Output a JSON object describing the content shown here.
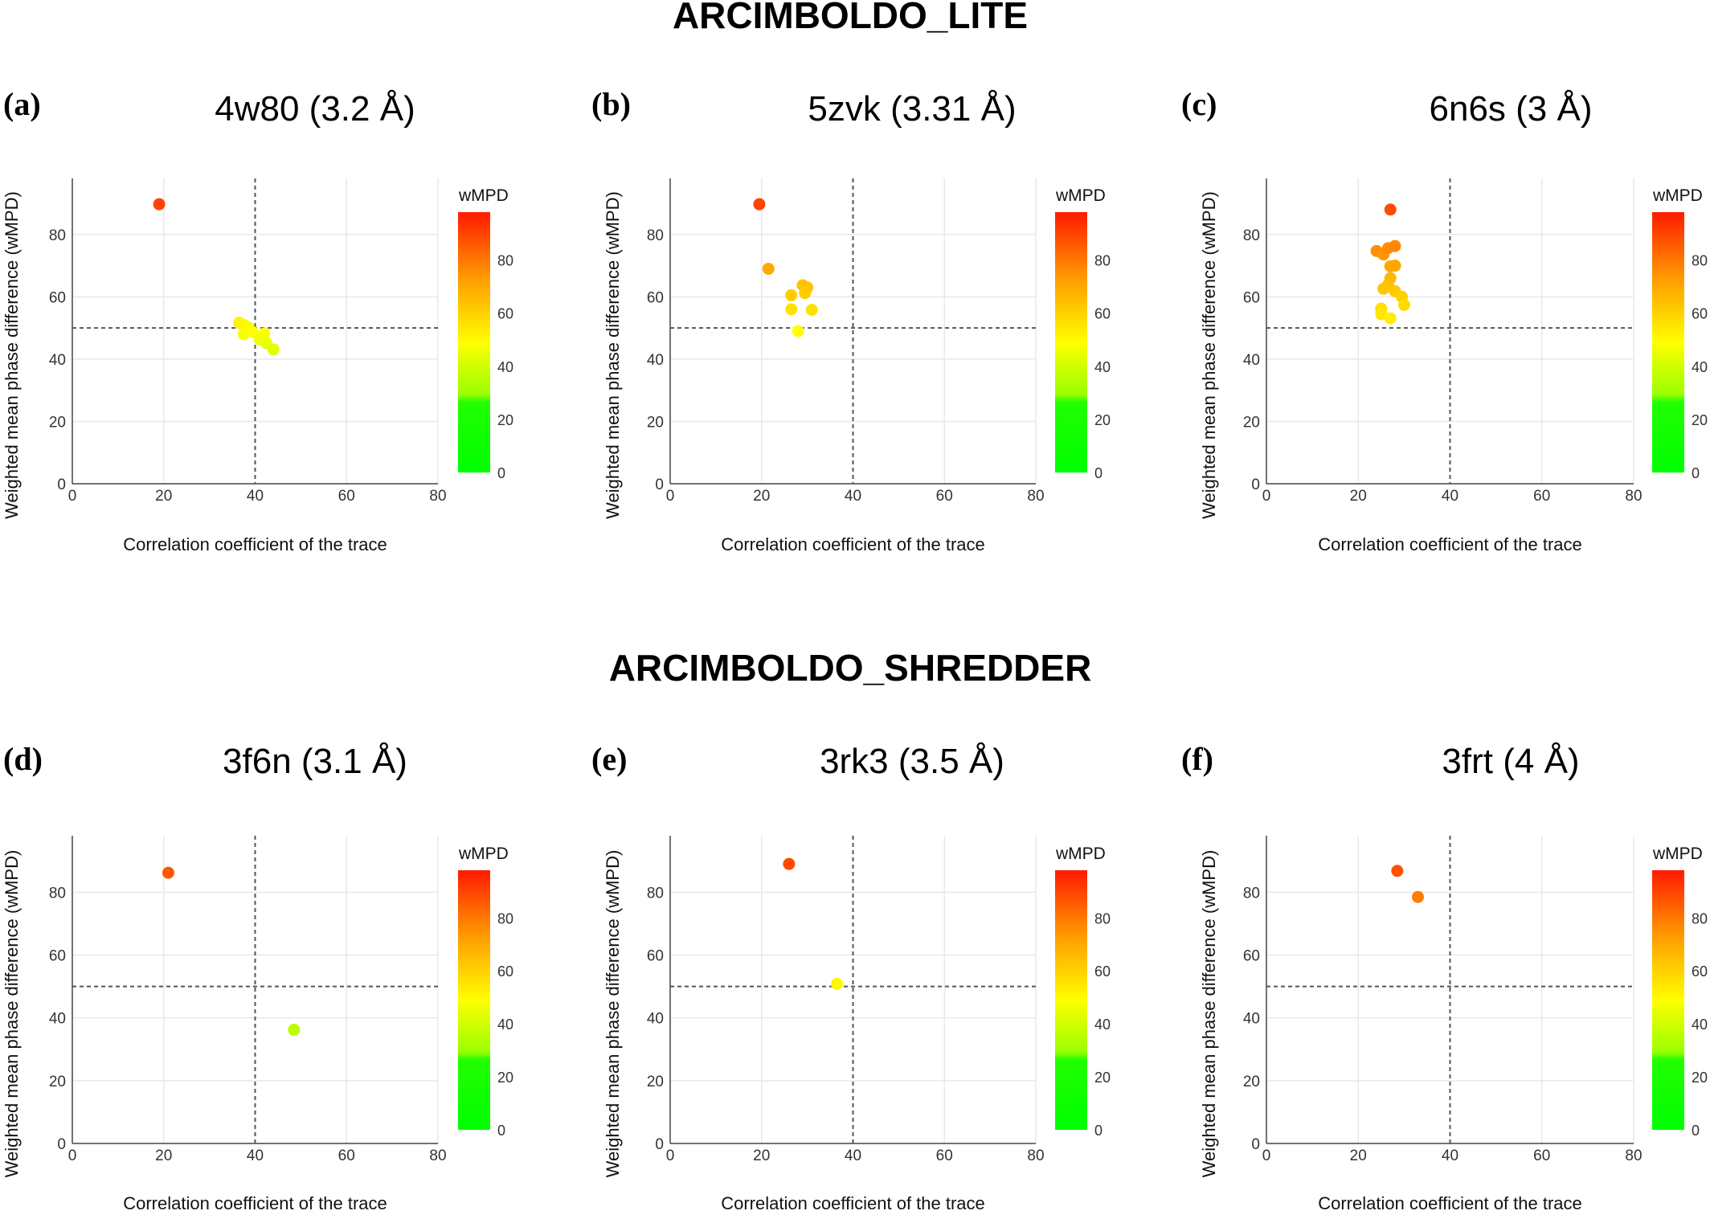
{
  "section_titles": [
    "ARCIMBOLDO_LITE",
    "ARCIMBOLDO_SHREDDER"
  ],
  "colorbar": {
    "title": "wMPD",
    "min": 0,
    "max": 98,
    "ticks": [
      0,
      20,
      40,
      60,
      80
    ]
  },
  "chart_data": [
    {
      "type": "scatter",
      "panel_letter": "(a)",
      "title": "4w80 (3.2 Å)",
      "xlabel": "Correlation coefficient of the trace",
      "ylabel": "Weighted mean phase difference (wMPD)",
      "xlim": [
        0,
        80
      ],
      "ylim": [
        0,
        98
      ],
      "xticks": [
        0,
        20,
        40,
        60,
        80
      ],
      "yticks": [
        0,
        20,
        40,
        60,
        80
      ],
      "reference_lines": {
        "x": 40,
        "y": 50
      },
      "grid": true,
      "points": [
        {
          "x": 19.0,
          "y": 89.7
        },
        {
          "x": 36.5,
          "y": 51.7
        },
        {
          "x": 37.5,
          "y": 51.0
        },
        {
          "x": 38.5,
          "y": 50.2
        },
        {
          "x": 37.5,
          "y": 48.0
        },
        {
          "x": 39.5,
          "y": 48.6
        },
        {
          "x": 42.0,
          "y": 48.2
        },
        {
          "x": 41.0,
          "y": 46.3
        },
        {
          "x": 42.5,
          "y": 45.1
        },
        {
          "x": 44.0,
          "y": 43.1
        }
      ]
    },
    {
      "type": "scatter",
      "panel_letter": "(b)",
      "title": "5zvk (3.31 Å)",
      "xlabel": "Correlation coefficient of the trace",
      "ylabel": "Weighted mean phase difference (wMPD)",
      "xlim": [
        0,
        80
      ],
      "ylim": [
        0,
        98
      ],
      "xticks": [
        0,
        20,
        40,
        60,
        80
      ],
      "yticks": [
        0,
        20,
        40,
        60,
        80
      ],
      "reference_lines": {
        "x": 40,
        "y": 50
      },
      "grid": true,
      "points": [
        {
          "x": 19.5,
          "y": 89.7
        },
        {
          "x": 21.5,
          "y": 69.0
        },
        {
          "x": 26.5,
          "y": 60.5
        },
        {
          "x": 29.0,
          "y": 63.7
        },
        {
          "x": 30.0,
          "y": 63.0
        },
        {
          "x": 29.5,
          "y": 61.2
        },
        {
          "x": 26.5,
          "y": 56.0
        },
        {
          "x": 31.0,
          "y": 55.8
        },
        {
          "x": 28.0,
          "y": 49.0
        }
      ]
    },
    {
      "type": "scatter",
      "panel_letter": "(c)",
      "title": "6n6s (3 Å)",
      "xlabel": "Correlation coefficient of the trace",
      "ylabel": "Weighted mean phase difference (wMPD)",
      "xlim": [
        0,
        80
      ],
      "ylim": [
        0,
        98
      ],
      "xticks": [
        0,
        20,
        40,
        60,
        80
      ],
      "yticks": [
        0,
        20,
        40,
        60,
        80
      ],
      "reference_lines": {
        "x": 40,
        "y": 50
      },
      "grid": true,
      "points": [
        {
          "x": 27.0,
          "y": 88.0
        },
        {
          "x": 24.0,
          "y": 74.7
        },
        {
          "x": 25.5,
          "y": 73.6
        },
        {
          "x": 26.5,
          "y": 75.6
        },
        {
          "x": 28.0,
          "y": 76.3
        },
        {
          "x": 27.0,
          "y": 69.8
        },
        {
          "x": 28.0,
          "y": 70.0
        },
        {
          "x": 27.0,
          "y": 66.0
        },
        {
          "x": 26.5,
          "y": 63.8
        },
        {
          "x": 25.5,
          "y": 62.6
        },
        {
          "x": 28.0,
          "y": 61.8
        },
        {
          "x": 29.5,
          "y": 60.0
        },
        {
          "x": 30.0,
          "y": 57.4
        },
        {
          "x": 25.0,
          "y": 56.2
        },
        {
          "x": 25.0,
          "y": 54.4
        },
        {
          "x": 27.0,
          "y": 53.1
        }
      ]
    },
    {
      "type": "scatter",
      "panel_letter": "(d)",
      "title": "3f6n (3.1 Å)",
      "xlabel": "Correlation coefficient of the trace",
      "ylabel": "Weighted mean phase difference (wMPD)",
      "xlim": [
        0,
        80
      ],
      "ylim": [
        0,
        98
      ],
      "xticks": [
        0,
        20,
        40,
        60,
        80
      ],
      "yticks": [
        0,
        20,
        40,
        60,
        80
      ],
      "reference_lines": {
        "x": 40,
        "y": 50
      },
      "grid": true,
      "points": [
        {
          "x": 21.0,
          "y": 86.2
        },
        {
          "x": 48.5,
          "y": 36.2
        }
      ]
    },
    {
      "type": "scatter",
      "panel_letter": "(e)",
      "title": "3rk3 (3.5 Å)",
      "xlabel": "Correlation coefficient of the trace",
      "ylabel": "Weighted mean phase difference (wMPD)",
      "xlim": [
        0,
        80
      ],
      "ylim": [
        0,
        98
      ],
      "xticks": [
        0,
        20,
        40,
        60,
        80
      ],
      "yticks": [
        0,
        20,
        40,
        60,
        80
      ],
      "reference_lines": {
        "x": 40,
        "y": 50
      },
      "grid": true,
      "points": [
        {
          "x": 26.0,
          "y": 89.0
        },
        {
          "x": 36.5,
          "y": 50.8
        }
      ]
    },
    {
      "type": "scatter",
      "panel_letter": "(f)",
      "title": "3frt (4 Å)",
      "xlabel": "Correlation coefficient of the trace",
      "ylabel": "Weighted mean phase difference (wMPD)",
      "xlim": [
        0,
        80
      ],
      "ylim": [
        0,
        98
      ],
      "xticks": [
        0,
        20,
        40,
        60,
        80
      ],
      "yticks": [
        0,
        20,
        40,
        60,
        80
      ],
      "reference_lines": {
        "x": 40,
        "y": 50
      },
      "grid": true,
      "points": [
        {
          "x": 28.5,
          "y": 86.8
        },
        {
          "x": 33.0,
          "y": 78.5
        }
      ]
    }
  ]
}
